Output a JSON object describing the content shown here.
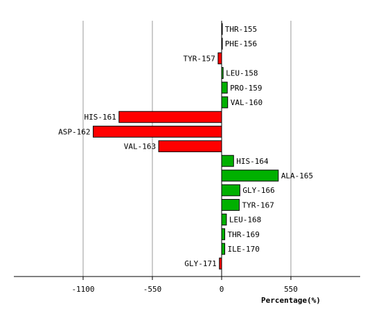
{
  "chart_data": {
    "type": "bar",
    "orientation": "horizontal",
    "xlabel": "Percentage(%)",
    "xlim": [
      -1650,
      1100
    ],
    "xticks": [
      -1100,
      -550,
      0,
      550
    ],
    "xtick_labels": [
      "-1100",
      "-550",
      "0",
      "550"
    ],
    "grid": true,
    "categories": [
      "THR-155",
      "PHE-156",
      "TYR-157",
      "LEU-158",
      "PRO-159",
      "VAL-160",
      "HIS-161",
      "ASP-162",
      "VAL-163",
      "HIS-164",
      "ALA-165",
      "GLY-166",
      "TYR-167",
      "LEU-168",
      "THR-169",
      "ILE-170",
      "GLY-171"
    ],
    "values": [
      4,
      4,
      -28,
      12,
      45,
      48,
      -815,
      -1020,
      -500,
      95,
      450,
      145,
      140,
      38,
      25,
      25,
      -18
    ],
    "colors": {
      "positive": "#00b000",
      "negative": "#ff0000",
      "zero_line": "#000000",
      "grid": "#999999"
    }
  }
}
